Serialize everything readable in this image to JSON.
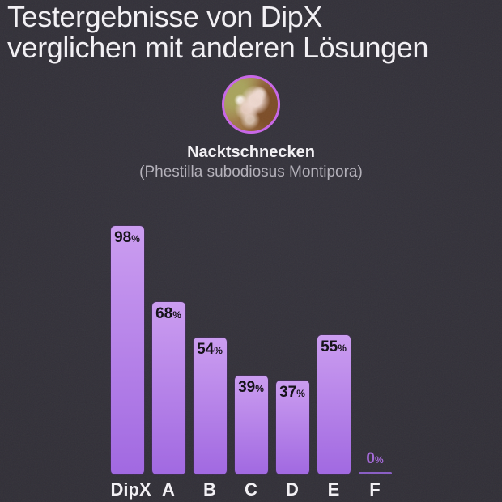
{
  "title": {
    "line1": "Testergebnisse von DipX",
    "line2": "verglichen mit anderen Lösungen"
  },
  "subject": {
    "name": "Nacktschnecken",
    "scientific_name": "(Phestilla subodiosus Montipora)"
  },
  "chart_data": {
    "type": "bar",
    "categories": [
      "DipX",
      "A",
      "B",
      "C",
      "D",
      "E",
      "F"
    ],
    "values": [
      98,
      68,
      54,
      39,
      37,
      55,
      0
    ],
    "value_suffix": "%",
    "title": "",
    "xlabel": "",
    "ylabel": "",
    "ylim": [
      0,
      100
    ],
    "grid": false,
    "legend": "none",
    "value_labels": "inside-top",
    "highlight_category": "DipX"
  },
  "colors": {
    "background": "#302e36",
    "title_text": "#f4f2f6",
    "bar_gradient_top": "#cb9df0",
    "bar_gradient_bottom": "#a169e1",
    "bar_value_text": "#16131a",
    "zero_value_text": "#a46ad8",
    "zero_line": "#8a5fc4",
    "category_text": "#f2f0f4",
    "scientific_text": "#b4b1ba",
    "photo_ring": "#c865e8"
  }
}
